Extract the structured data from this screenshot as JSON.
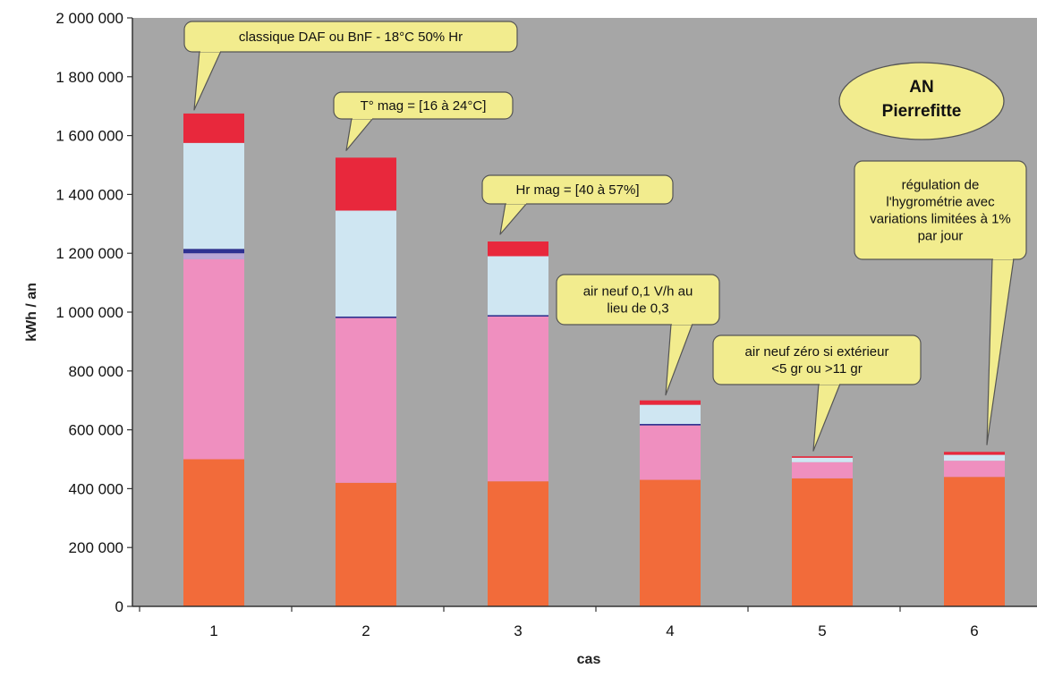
{
  "chart_data": {
    "type": "bar",
    "stacked": true,
    "xlabel": "cas",
    "ylabel": "kWh / an",
    "ylim": [
      0,
      2000000
    ],
    "y_ticks": [
      0,
      200000,
      400000,
      600000,
      800000,
      1000000,
      1200000,
      1400000,
      1600000,
      1800000,
      2000000
    ],
    "y_tick_labels": [
      "0",
      "200 000",
      "400 000",
      "600 000",
      "800 000",
      "1 000 000",
      "1 200 000",
      "1 400 000",
      "1 600 000",
      "1 800 000",
      "2 000 000"
    ],
    "grid": false,
    "legend": "none",
    "plot_background": "#a6a6a6",
    "categories": [
      "1",
      "2",
      "3",
      "4",
      "5",
      "6"
    ],
    "series": [
      {
        "color": "#f26b3a",
        "values": [
          500000,
          420000,
          425000,
          430000,
          435000,
          440000
        ]
      },
      {
        "color": "#ef8fbf",
        "values": [
          680000,
          560000,
          560000,
          185000,
          55000,
          55000
        ]
      },
      {
        "color": "#b9a6d6",
        "values": [
          20000,
          0,
          0,
          0,
          0,
          0
        ]
      },
      {
        "color": "#2e3192",
        "values": [
          15000,
          5000,
          5000,
          5000,
          0,
          0
        ]
      },
      {
        "color": "#cfe6f2",
        "values": [
          360000,
          360000,
          200000,
          65000,
          15000,
          20000
        ]
      },
      {
        "color": "#e8283c",
        "values": [
          100000,
          180000,
          50000,
          15000,
          5000,
          10000
        ]
      }
    ],
    "annotations": [
      {
        "text": "classique DAF ou BnF - 18°C 50% Hr",
        "target": "1"
      },
      {
        "text": "T° mag = [16 à 24°C]",
        "target": "2"
      },
      {
        "text": "Hr mag = [40 à 57%]",
        "target": "3"
      },
      {
        "text": "air neuf 0,1 V/h au lieu de 0,3",
        "lines": [
          "air neuf 0,1 V/h au",
          "lieu de 0,3"
        ],
        "target": "4"
      },
      {
        "text": "air neuf zéro si extérieur <5 gr ou >11 gr",
        "lines": [
          "air neuf zéro si extérieur",
          "<5 gr  ou  >11 gr"
        ],
        "target": "5"
      },
      {
        "text": "régulation de l'hygrométrie avec variations limitées à 1% par jour",
        "lines": [
          "régulation de",
          "l'hygrométrie avec",
          "variations limitées à 1%",
          "par jour"
        ],
        "target": "6"
      }
    ],
    "label_box": {
      "lines": [
        "AN",
        "Pierrefitte"
      ]
    }
  }
}
